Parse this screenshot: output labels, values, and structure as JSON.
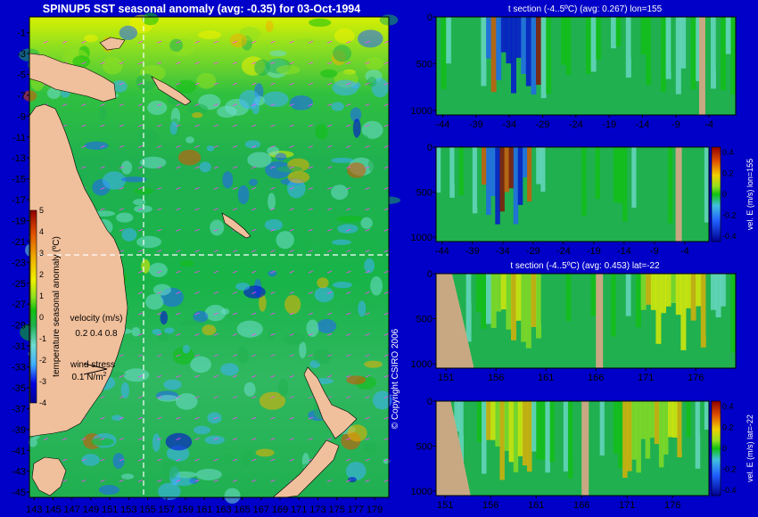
{
  "main_title": "SPINUP5 SST seasonal anomaly (avg: -0.35) for 03-Oct-1994",
  "copyright": "© Copyright CSIRO 2006",
  "colors": {
    "background": "#0000c8",
    "land": "#f0bf9b",
    "section_land": "#c8a882",
    "guide_line": "#ffffff",
    "vector": "#ff44ff"
  },
  "colormap": [
    "#000090",
    "#0000e0",
    "#2060ff",
    "#40b0ff",
    "#70dcd0",
    "#20b050",
    "#10c010",
    "#90e020",
    "#f0f000",
    "#f0b000",
    "#e05000",
    "#900000"
  ],
  "chart_data": [
    {
      "id": "map",
      "type": "heatmap",
      "title": "SPINUP5 SST seasonal anomaly (avg: -0.35) for 03-Oct-1994",
      "x_ticks": [
        143,
        145,
        147,
        149,
        151,
        153,
        155,
        157,
        159,
        161,
        163,
        165,
        167,
        169,
        171,
        173,
        175,
        177,
        179
      ],
      "y_ticks": [
        -1,
        -3,
        -5,
        -7,
        -9,
        -11,
        -13,
        -15,
        -17,
        -19,
        -21,
        -23,
        -25,
        -27,
        -29,
        -31,
        -33,
        -35,
        -37,
        -39,
        -41,
        -43,
        -45
      ],
      "xlim": [
        142.5,
        180.5
      ],
      "ylim": [
        -45.5,
        0.5
      ],
      "guides": {
        "lon": 155,
        "lat": -22
      },
      "colorbar": {
        "label": "temperature seasonal anomaly (ºC)",
        "ticks": [
          5,
          4,
          3,
          2,
          1,
          0,
          -1,
          -2,
          -3,
          -4
        ],
        "range": [
          -4,
          5
        ]
      },
      "velocity_key": {
        "title": "velocity (m/s)",
        "values": "0.2 0.4 0.8"
      },
      "wind_key": {
        "title": "wind stress",
        "value": "0.1 N/m",
        "superscript": "2"
      }
    },
    {
      "id": "section1",
      "type": "heatmap",
      "title": "t section (-4..5ºC) (avg: 0.267) lon=155",
      "x_ticks": [
        "-44",
        "-39",
        "-34",
        "-29",
        "-24",
        "-19",
        "-14",
        "-9",
        "-4"
      ],
      "y_ticks": [
        "0",
        "500",
        "1000"
      ],
      "xlim": [
        -45,
        0
      ],
      "ylim": [
        0,
        1050
      ]
    },
    {
      "id": "section2",
      "type": "heatmap",
      "title": "",
      "x_ticks": [
        "-44",
        "-39",
        "-34",
        "-29",
        "-24",
        "-19",
        "-14",
        "-9",
        "-4"
      ],
      "y_ticks": [
        "0",
        "500",
        "1000"
      ],
      "xlim": [
        -45,
        0
      ],
      "ylim": [
        0,
        1050
      ],
      "colorbar": {
        "label": "vel. E (m/s) lon=155",
        "ticks": [
          "0.4",
          "0.2",
          "0",
          "-0.2",
          "-0.4"
        ],
        "range": [
          -0.45,
          0.45
        ]
      }
    },
    {
      "id": "section3",
      "type": "heatmap",
      "title": "t section (-4..5ºC) (avg: 0.453) lat=-22",
      "x_ticks": [
        "151",
        "156",
        "161",
        "166",
        "171",
        "176"
      ],
      "y_ticks": [
        "0",
        "500",
        "1000"
      ],
      "xlim": [
        150,
        180
      ],
      "ylim": [
        0,
        1050
      ]
    },
    {
      "id": "section4",
      "type": "heatmap",
      "title": "",
      "x_ticks": [
        "151",
        "156",
        "161",
        "166",
        "171",
        "176"
      ],
      "y_ticks": [
        "0",
        "500",
        "1000"
      ],
      "xlim": [
        150,
        180
      ],
      "ylim": [
        0,
        1050
      ],
      "colorbar": {
        "label": "vel. E (m/s) lat=-22",
        "ticks": [
          "0.4",
          "0.2",
          "0",
          "-0.2",
          "-0.4"
        ],
        "range": [
          -0.45,
          0.45
        ]
      }
    }
  ]
}
